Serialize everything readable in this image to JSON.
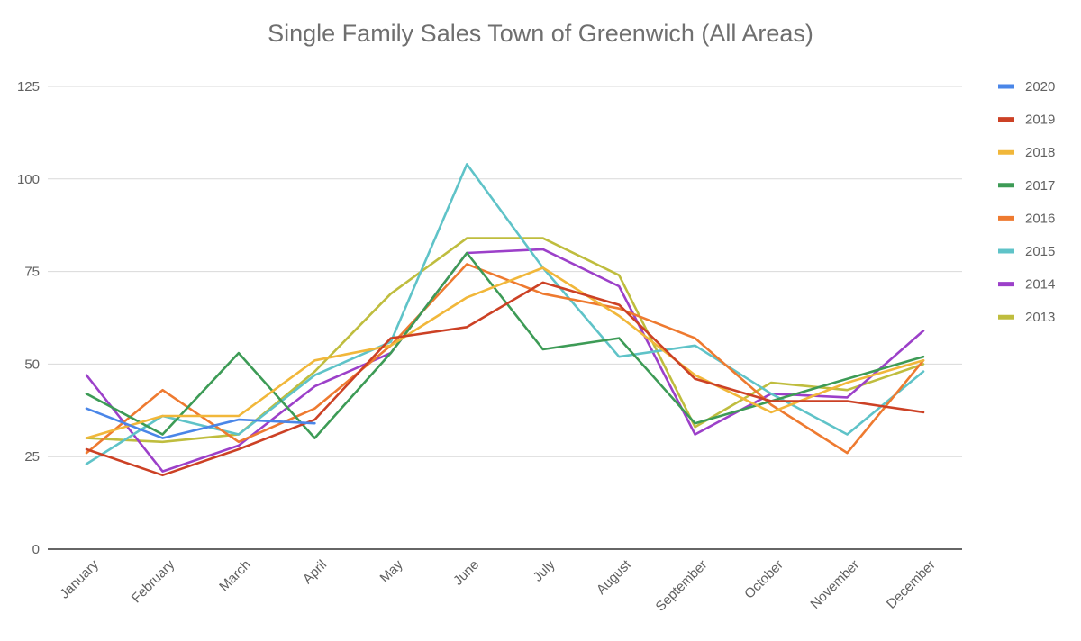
{
  "chart_data": {
    "type": "line",
    "title": "Single Family Sales Town of Greenwich (All Areas)",
    "xlabel": "",
    "ylabel": "",
    "ylim": [
      0,
      125
    ],
    "yticks": [
      0,
      25,
      50,
      75,
      100,
      125
    ],
    "grid": true,
    "legend": "right",
    "categories": [
      "January",
      "February",
      "March",
      "April",
      "May",
      "June",
      "July",
      "August",
      "September",
      "October",
      "November",
      "December"
    ],
    "series": [
      {
        "name": "2020",
        "color": "#4a86e8",
        "values": [
          38,
          30,
          35,
          34,
          null,
          null,
          null,
          null,
          null,
          null,
          null,
          null
        ]
      },
      {
        "name": "2019",
        "color": "#cc4125",
        "values": [
          27,
          20,
          27,
          35,
          57,
          60,
          72,
          66,
          46,
          40,
          40,
          37
        ]
      },
      {
        "name": "2018",
        "color": "#f1b73a",
        "values": [
          30,
          36,
          36,
          51,
          55,
          68,
          76,
          63,
          47,
          37,
          45,
          51
        ]
      },
      {
        "name": "2017",
        "color": "#3d9b56",
        "values": [
          42,
          31,
          53,
          30,
          53,
          80,
          54,
          57,
          34,
          40,
          46,
          52
        ]
      },
      {
        "name": "2016",
        "color": "#ee7a30",
        "values": [
          26,
          43,
          29,
          38,
          55,
          77,
          69,
          65,
          57,
          39,
          26,
          51
        ]
      },
      {
        "name": "2015",
        "color": "#5fc3c8",
        "values": [
          23,
          36,
          31,
          47,
          56,
          104,
          76,
          52,
          55,
          42,
          31,
          48
        ]
      },
      {
        "name": "2014",
        "color": "#9c40c9",
        "values": [
          47,
          21,
          28,
          44,
          53,
          80,
          81,
          71,
          31,
          42,
          41,
          59
        ]
      },
      {
        "name": "2013",
        "color": "#bfbd3e",
        "values": [
          30,
          29,
          31,
          48,
          69,
          84,
          84,
          74,
          33,
          45,
          43,
          50
        ]
      }
    ]
  }
}
